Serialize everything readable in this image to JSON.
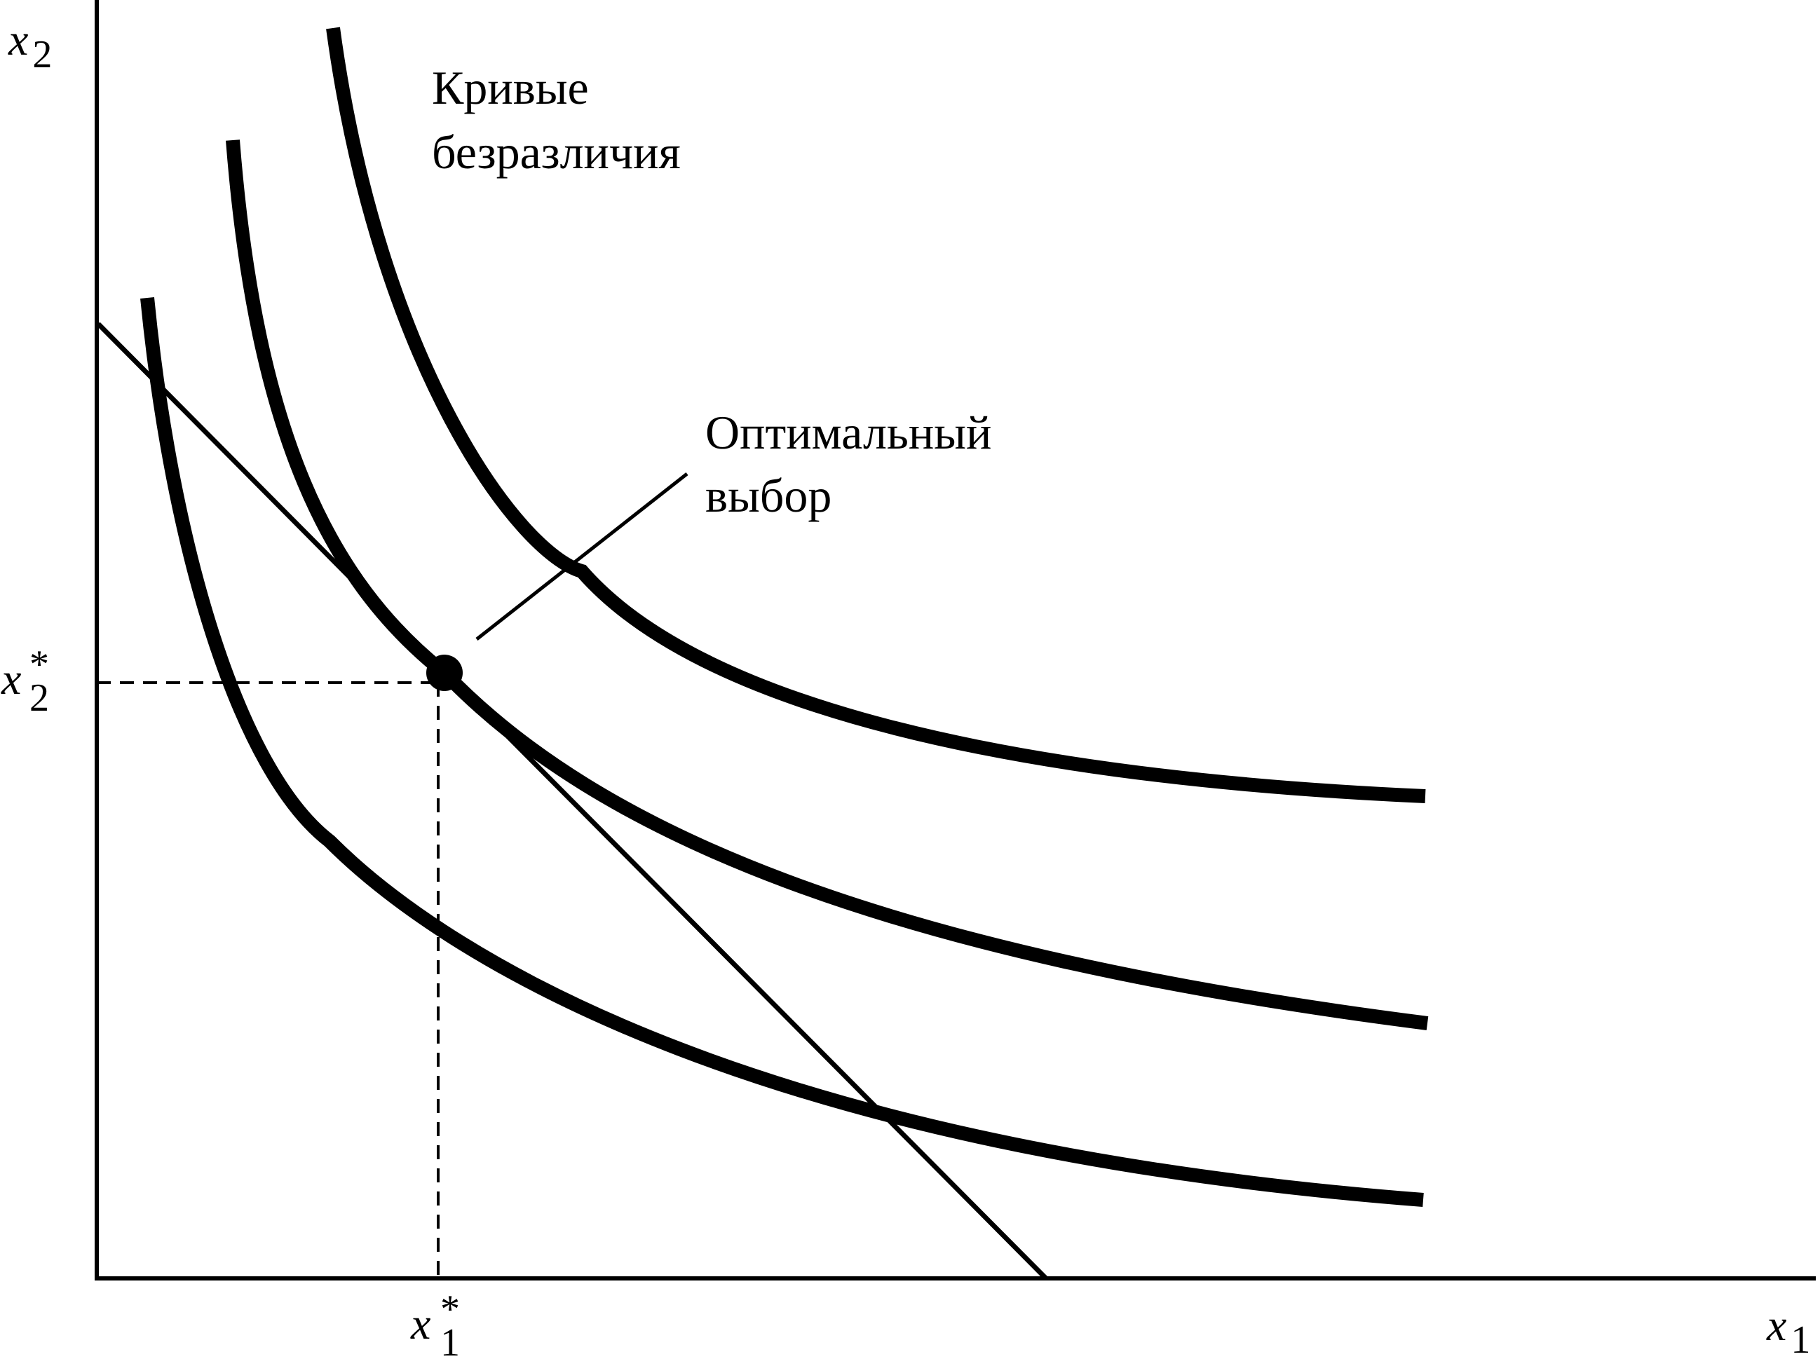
{
  "axes": {
    "x_label": {
      "base": "x",
      "sub": "1"
    },
    "y_label": {
      "base": "x",
      "sub": "2"
    }
  },
  "ticks": {
    "x_star": {
      "base": "x",
      "sup": "*",
      "sub": "1"
    },
    "y_star": {
      "base": "x",
      "sup": "*",
      "sub": "2"
    }
  },
  "annotations": {
    "curves_label": [
      "Кривые",
      "безразличия"
    ],
    "optimum_label": [
      "Оптимальный",
      "выбор"
    ]
  },
  "chart_data": {
    "type": "line",
    "title": "",
    "xlabel": "x1",
    "ylabel": "x2",
    "grid": false,
    "series": [
      {
        "kind": "indifference-curve",
        "level": 1
      },
      {
        "kind": "indifference-curve",
        "level": 2
      },
      {
        "kind": "indifference-curve",
        "level": 3
      },
      {
        "kind": "budget-line"
      }
    ],
    "optimum": {
      "x": "x*1",
      "y": "x*2",
      "marker": "filled-circle"
    }
  },
  "colors": {
    "ink": "#000000",
    "background": "#ffffff"
  }
}
